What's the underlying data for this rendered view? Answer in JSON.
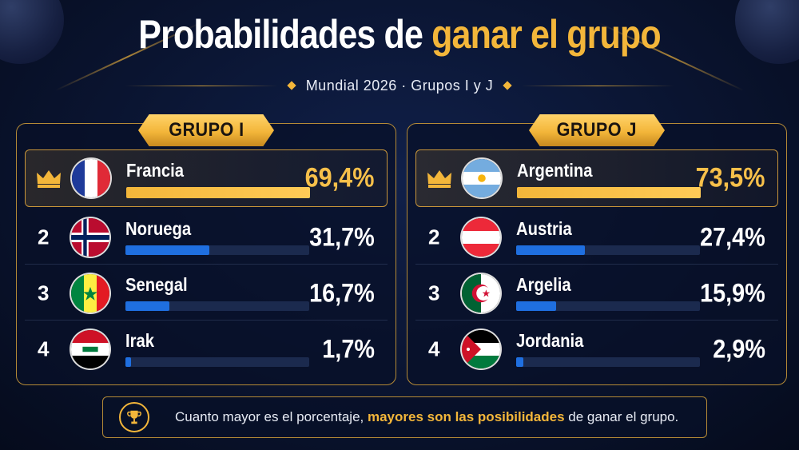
{
  "header": {
    "title_main": "Probabilidades de ",
    "title_highlight": "ganar el grupo",
    "subtitle": "Mundial 2026 · Grupos I y J"
  },
  "groups": [
    {
      "label": "GRUPO I",
      "teams": [
        {
          "rank": "1",
          "leader_icon": "crown-icon",
          "flag": "france-flag-icon",
          "country": "Francia",
          "pct_text": "69,4%",
          "probability": 0.694
        },
        {
          "rank": "2",
          "flag": "norway-flag-icon",
          "country": "Noruega",
          "pct_text": "31,7%",
          "probability": 0.317
        },
        {
          "rank": "3",
          "flag": "senegal-flag-icon",
          "country": "Senegal",
          "pct_text": "16,7%",
          "probability": 0.167
        },
        {
          "rank": "4",
          "flag": "iraq-flag-icon",
          "country": "Irak",
          "pct_text": "1,7%",
          "probability": 0.017
        }
      ]
    },
    {
      "label": "GRUPO J",
      "teams": [
        {
          "rank": "1",
          "leader_icon": "crown-icon",
          "flag": "argentina-flag-icon",
          "country": "Argentina",
          "pct_text": "73,5%",
          "probability": 0.735
        },
        {
          "rank": "2",
          "flag": "austria-flag-icon",
          "country": "Austria",
          "pct_text": "27,4%",
          "probability": 0.274
        },
        {
          "rank": "3",
          "flag": "algeria-flag-icon",
          "country": "Argelia",
          "pct_text": "15,9%",
          "probability": 0.159
        },
        {
          "rank": "4",
          "flag": "jordan-flag-icon",
          "country": "Jordania",
          "pct_text": "2,9%",
          "probability": 0.029
        }
      ]
    }
  ],
  "footer": {
    "icon": "trophy-icon",
    "text_before": "Cuanto mayor es el porcentaje, ",
    "text_highlight": "mayores son las posibilidades",
    "text_after": " de ganar el grupo."
  },
  "colors": {
    "accent_gold": "#f3b63a",
    "bar_blue": "#1f6fe0",
    "background": "#0a1430"
  }
}
